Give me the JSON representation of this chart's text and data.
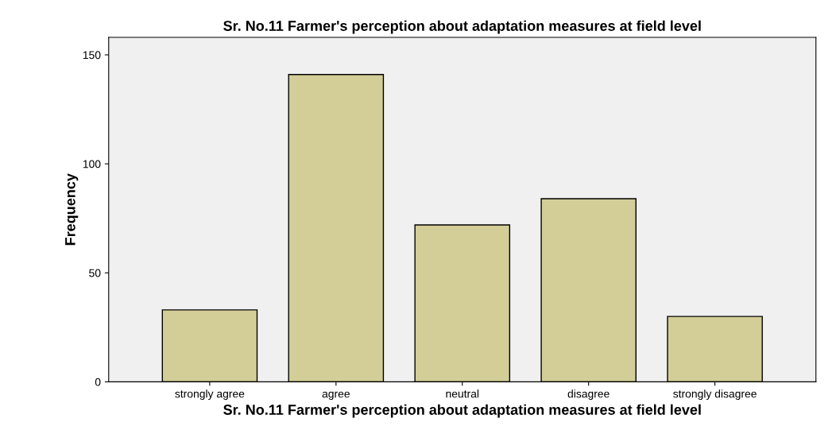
{
  "chart_data": {
    "type": "bar",
    "title": "Sr. No.11 Farmer's perception about adaptation measures at field level",
    "xlabel": "Sr. No.11 Farmer's perception about adaptation measures at field level",
    "ylabel": "Frequency",
    "categories": [
      "strongly agree",
      "agree",
      "neutral",
      "disagree",
      "strongly disagree"
    ],
    "values": [
      33,
      141,
      72,
      84,
      30
    ],
    "color": "#d3ce97",
    "ylim": [
      0,
      158
    ],
    "yticks": [
      0,
      50,
      100,
      150
    ],
    "grid": false
  }
}
